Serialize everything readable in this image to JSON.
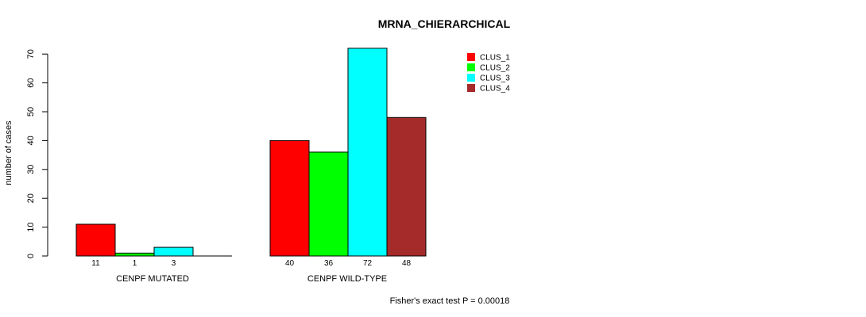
{
  "chart_data": {
    "type": "bar",
    "title": "MRNA_CHIERARCHICAL",
    "ylabel": "number of cases",
    "xlabel": "",
    "ylim": [
      0,
      72
    ],
    "yticks": [
      0,
      10,
      20,
      30,
      40,
      50,
      60,
      70
    ],
    "groups": [
      "CENPF MUTATED",
      "CENPF WILD-TYPE"
    ],
    "series": [
      {
        "name": "CLUS_1",
        "color": "#ff0000",
        "values": [
          11,
          40
        ],
        "labels": [
          "11",
          "40"
        ]
      },
      {
        "name": "CLUS_2",
        "color": "#00ff00",
        "values": [
          1,
          36
        ],
        "labels": [
          "1",
          "36"
        ]
      },
      {
        "name": "CLUS_3",
        "color": "#00ffff",
        "values": [
          3,
          72
        ],
        "labels": [
          "3",
          "72"
        ]
      },
      {
        "name": "CLUS_4",
        "color": "#a52a2a",
        "values": [
          0,
          48
        ],
        "labels": [
          "",
          "48"
        ]
      }
    ],
    "legend_position": "top-right",
    "grid": false,
    "annotation": "Fisher's exact test P = 0.00018"
  }
}
